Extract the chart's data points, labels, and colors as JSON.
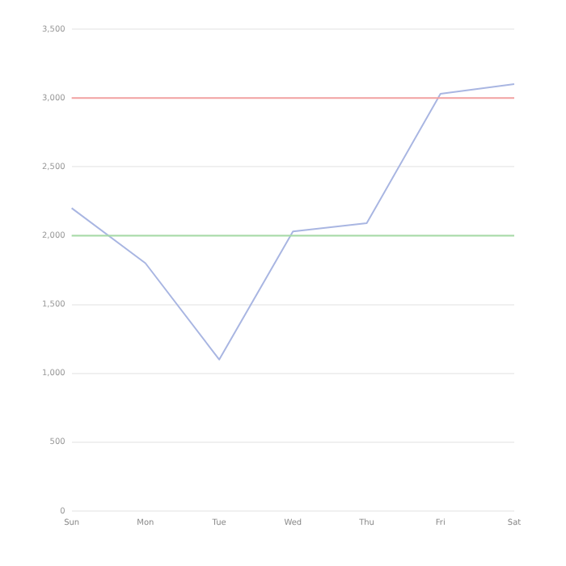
{
  "chart_data": {
    "type": "line",
    "categories": [
      "Sun",
      "Mon",
      "Tue",
      "Wed",
      "Thu",
      "Fri",
      "Sat"
    ],
    "series": [
      {
        "color": "#a9b6e2",
        "values": [
          2200,
          1800,
          1100,
          2030,
          2090,
          3030,
          3100
        ]
      }
    ],
    "ylim": [
      0,
      3500
    ],
    "yticks": [
      {
        "value": 0,
        "label": "0"
      },
      {
        "value": 500,
        "label": "500"
      },
      {
        "value": 1000,
        "label": "1,000"
      },
      {
        "value": 1500,
        "label": "1,500"
      },
      {
        "value": 2000,
        "label": "2,000"
      },
      {
        "value": 2500,
        "label": "2,500"
      },
      {
        "value": 3000,
        "label": "3,000"
      },
      {
        "value": 3500,
        "label": "3,500"
      }
    ],
    "ref_lines": [
      {
        "axis": "y",
        "value": 3000,
        "color": "#f4a3a3"
      },
      {
        "axis": "y",
        "value": 2000,
        "color": "#a6dba6"
      }
    ],
    "grid": "y",
    "legend": false,
    "marker": "none",
    "line_style": "solid"
  }
}
